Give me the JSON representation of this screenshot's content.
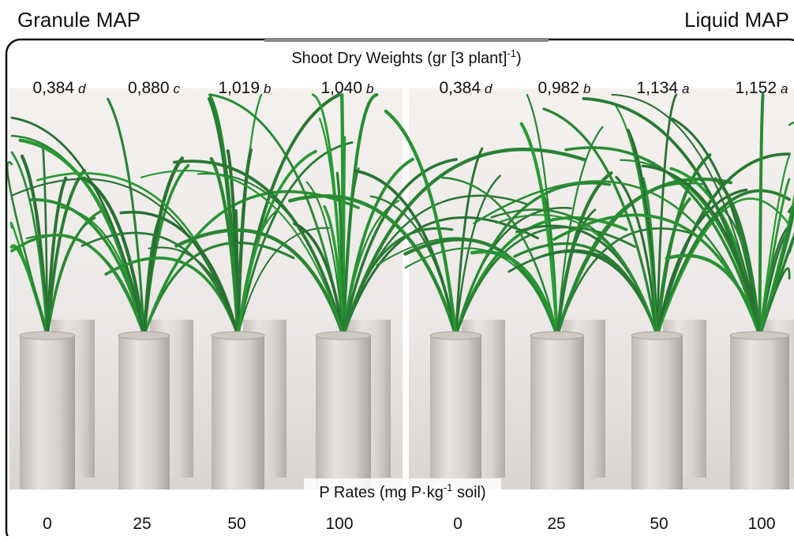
{
  "header": {
    "left": "Granule MAP",
    "right": "Liquid MAP"
  },
  "top_label": {
    "text": "Shoot Dry Weights (gr [3 plant]",
    "sup": "-1",
    "tail": ")"
  },
  "bottom_label": {
    "text": "P Rates (mg P·kg",
    "sup": "-1",
    "tail": " soil)"
  },
  "panels": [
    {
      "weights": [
        {
          "value": "0,384",
          "letter": "d"
        },
        {
          "value": "0,880",
          "letter": "c"
        },
        {
          "value": "1,019",
          "letter": "b"
        },
        {
          "value": "1,040",
          "letter": "b"
        }
      ],
      "rates": [
        "0",
        "25",
        "50",
        "100"
      ]
    },
    {
      "weights": [
        {
          "value": "0,384",
          "letter": "d"
        },
        {
          "value": "0,982",
          "letter": "b"
        },
        {
          "value": "1,134",
          "letter": "a"
        },
        {
          "value": "1,152",
          "letter": "a"
        }
      ],
      "rates": [
        "0",
        "25",
        "50",
        "100"
      ]
    }
  ]
}
